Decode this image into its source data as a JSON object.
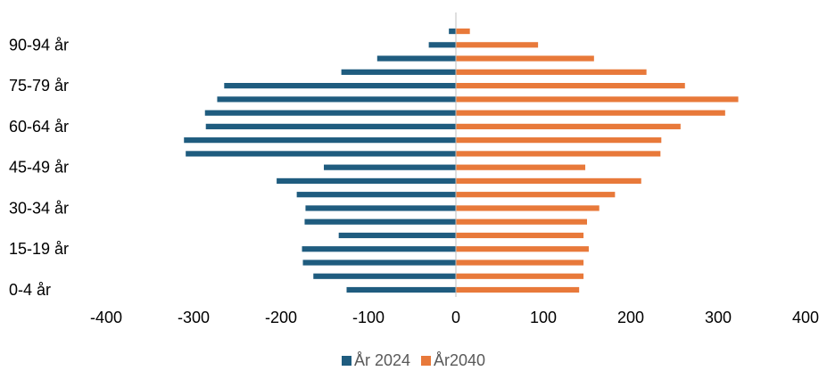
{
  "chart_data": {
    "type": "bar",
    "orientation": "horizontal",
    "title": "",
    "xlabel": "",
    "ylabel": "",
    "categories": [
      "0-4 år",
      "5-9 år",
      "10-14 år",
      "15-19 år",
      "20-24 år",
      "25-29 år",
      "30-34 år",
      "35-39 år",
      "40-44 år",
      "45-49 år",
      "50-54 år",
      "55-59 år",
      "60-64 år",
      "65-69 år",
      "70-74 år",
      "75-79 år",
      "80-84 år",
      "85-89 år",
      "90-94 år",
      "95+ år"
    ],
    "visible_category_labels": [
      "0-4 år",
      "15-19 år",
      "30-34 år",
      "45-49 år",
      "60-64 år",
      "75-79 år",
      "90-94 år"
    ],
    "series": [
      {
        "name": "År 2024",
        "color": "#1f5c7f",
        "values": [
          -125,
          -163,
          -175,
          -176,
          -134,
          -173,
          -172,
          -182,
          -205,
          -151,
          -309,
          -311,
          -286,
          -287,
          -273,
          -265,
          -131,
          -90,
          -31,
          -8
        ]
      },
      {
        "name": "År2040",
        "color": "#e8793a",
        "values": [
          141,
          146,
          146,
          152,
          146,
          150,
          164,
          182,
          212,
          148,
          234,
          235,
          257,
          308,
          323,
          262,
          218,
          158,
          94,
          16
        ]
      }
    ],
    "xlim": [
      -400,
      400
    ],
    "xticks": [
      -400,
      -300,
      -200,
      -100,
      0,
      100,
      200,
      300,
      400
    ],
    "grid": false,
    "legend_position": "bottom"
  }
}
